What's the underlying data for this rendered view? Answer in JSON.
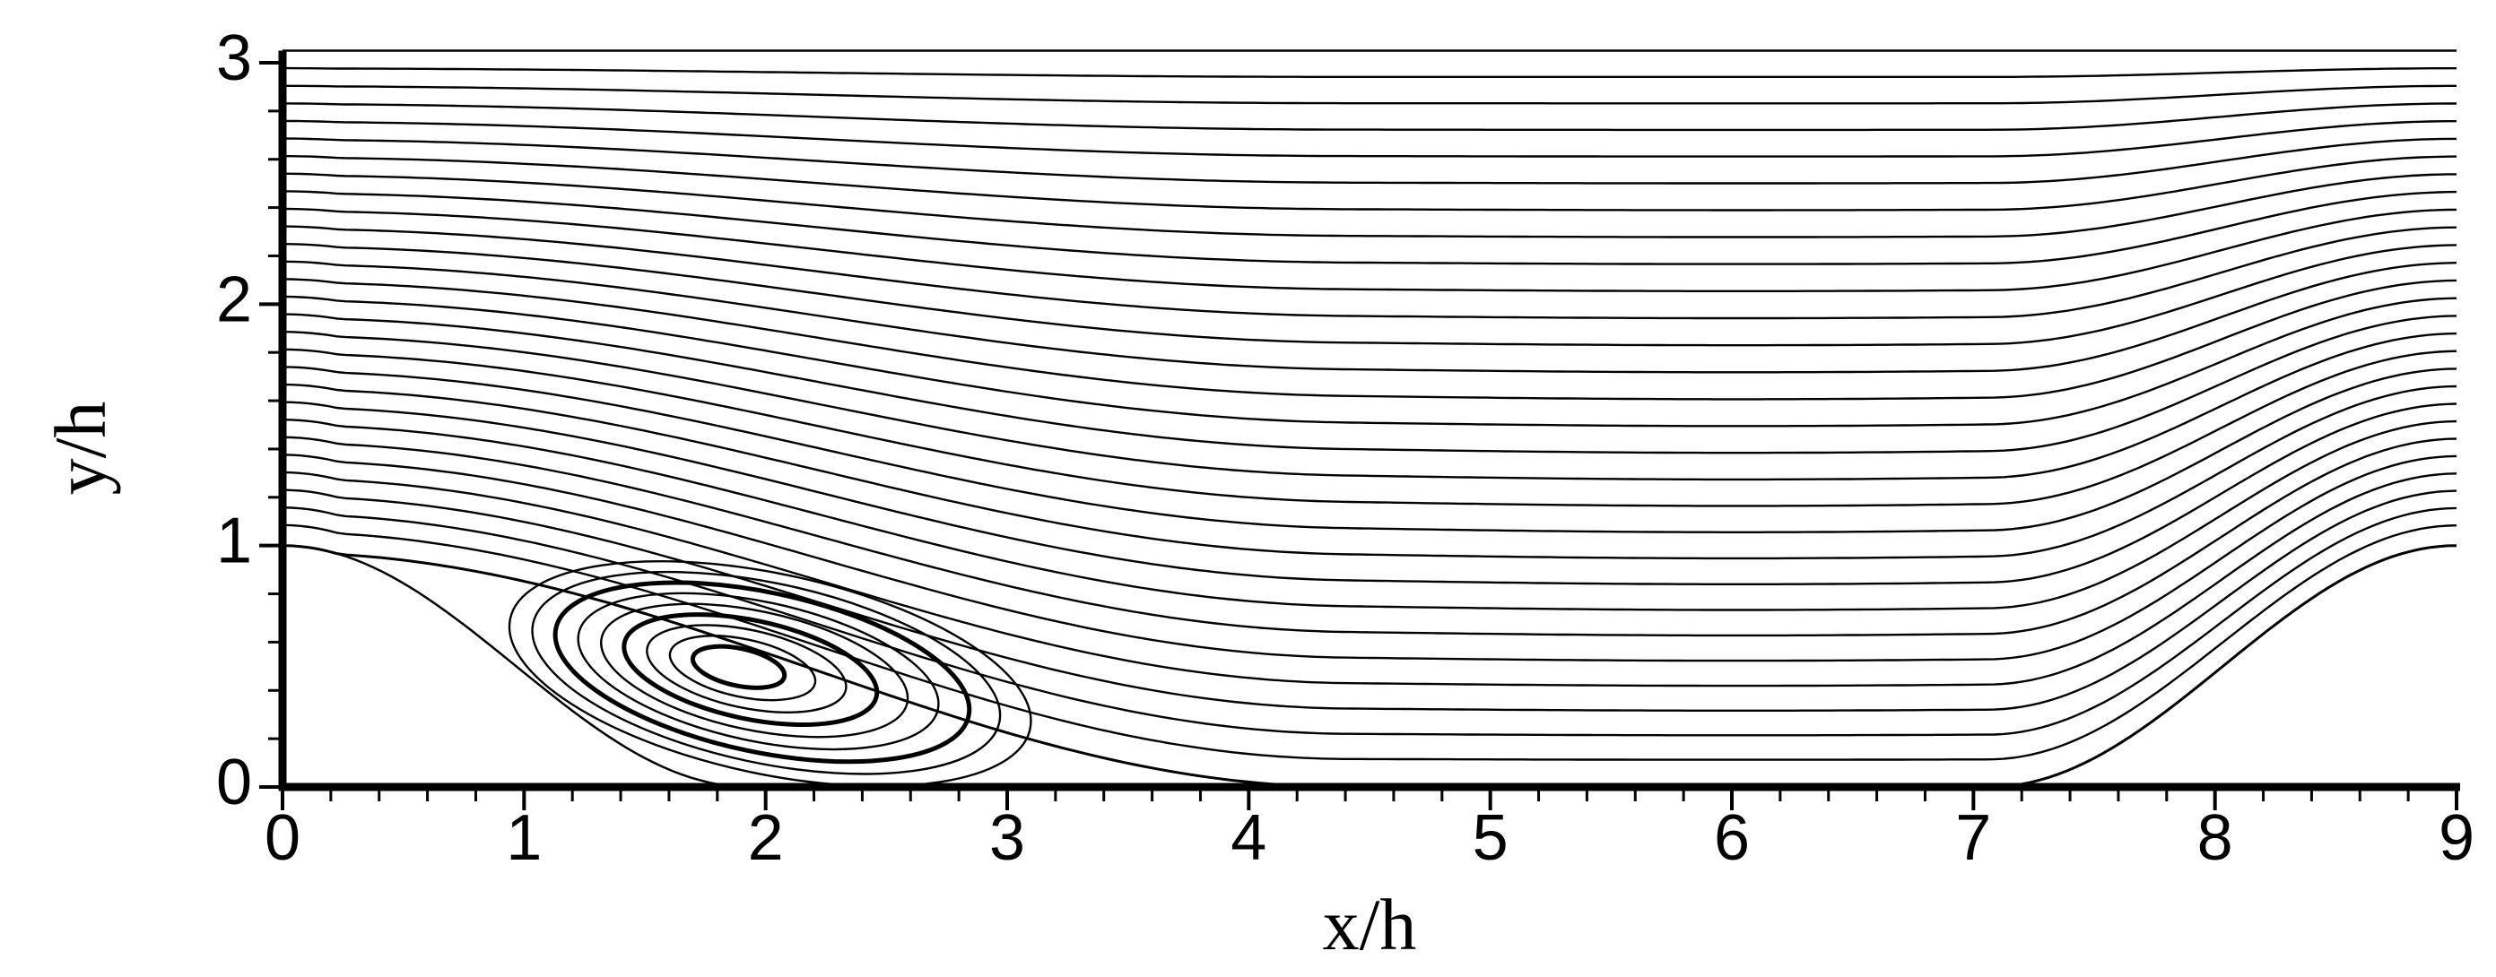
{
  "chart_data": {
    "type": "streamline",
    "xlabel": "x/h",
    "ylabel": "y/h",
    "xlim": [
      0,
      9
    ],
    "ylim": [
      0,
      3.05
    ],
    "xticks": [
      0,
      1,
      2,
      3,
      4,
      5,
      6,
      7,
      8,
      9
    ],
    "yticks": [
      0,
      1,
      2,
      3
    ]
  }
}
